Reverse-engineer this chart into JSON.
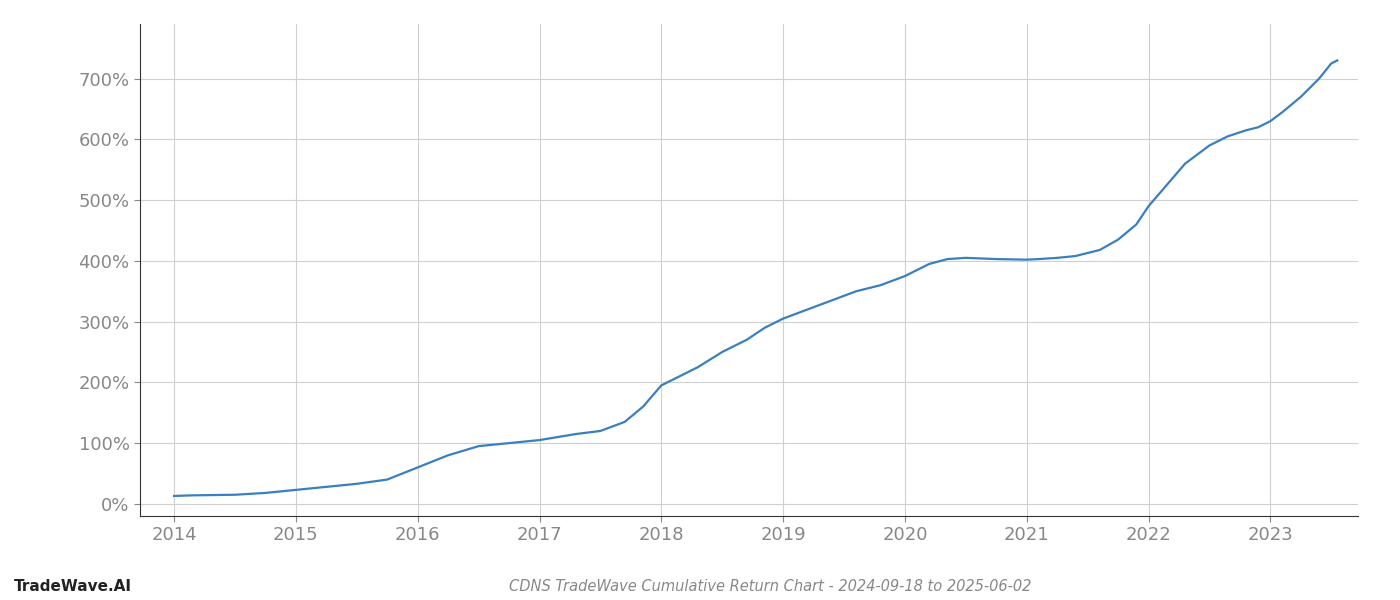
{
  "title": "CDNS TradeWave Cumulative Return Chart - 2024-09-18 to 2025-06-02",
  "watermark": "TradeWave.AI",
  "line_color": "#3a7fbf",
  "background_color": "#ffffff",
  "grid_color": "#d0d0d0",
  "x_years": [
    2014,
    2015,
    2016,
    2017,
    2018,
    2019,
    2020,
    2021,
    2022,
    2023
  ],
  "data_points": [
    [
      2014.0,
      13
    ],
    [
      2014.15,
      14
    ],
    [
      2014.5,
      15
    ],
    [
      2014.75,
      18
    ],
    [
      2015.0,
      23
    ],
    [
      2015.25,
      28
    ],
    [
      2015.5,
      33
    ],
    [
      2015.75,
      40
    ],
    [
      2016.0,
      60
    ],
    [
      2016.25,
      80
    ],
    [
      2016.5,
      95
    ],
    [
      2016.75,
      100
    ],
    [
      2017.0,
      105
    ],
    [
      2017.15,
      110
    ],
    [
      2017.3,
      115
    ],
    [
      2017.5,
      120
    ],
    [
      2017.7,
      135
    ],
    [
      2017.85,
      160
    ],
    [
      2018.0,
      195
    ],
    [
      2018.15,
      210
    ],
    [
      2018.3,
      225
    ],
    [
      2018.5,
      250
    ],
    [
      2018.7,
      270
    ],
    [
      2018.85,
      290
    ],
    [
      2019.0,
      305
    ],
    [
      2019.2,
      320
    ],
    [
      2019.4,
      335
    ],
    [
      2019.6,
      350
    ],
    [
      2019.8,
      360
    ],
    [
      2020.0,
      375
    ],
    [
      2020.2,
      395
    ],
    [
      2020.35,
      403
    ],
    [
      2020.5,
      405
    ],
    [
      2020.75,
      403
    ],
    [
      2021.0,
      402
    ],
    [
      2021.1,
      403
    ],
    [
      2021.25,
      405
    ],
    [
      2021.4,
      408
    ],
    [
      2021.6,
      418
    ],
    [
      2021.75,
      435
    ],
    [
      2021.9,
      460
    ],
    [
      2022.0,
      490
    ],
    [
      2022.15,
      525
    ],
    [
      2022.3,
      560
    ],
    [
      2022.5,
      590
    ],
    [
      2022.65,
      605
    ],
    [
      2022.8,
      615
    ],
    [
      2022.9,
      620
    ],
    [
      2023.0,
      630
    ],
    [
      2023.1,
      645
    ],
    [
      2023.25,
      670
    ],
    [
      2023.4,
      700
    ],
    [
      2023.5,
      725
    ],
    [
      2023.55,
      730
    ]
  ],
  "ylim": [
    -20,
    790
  ],
  "xlim": [
    2013.72,
    2023.72
  ],
  "yticks": [
    0,
    100,
    200,
    300,
    400,
    500,
    600,
    700
  ],
  "axis_color": "#333333",
  "tick_color": "#888888",
  "title_fontsize": 10.5,
  "watermark_fontsize": 11,
  "line_width": 1.6,
  "tick_fontsize": 13
}
